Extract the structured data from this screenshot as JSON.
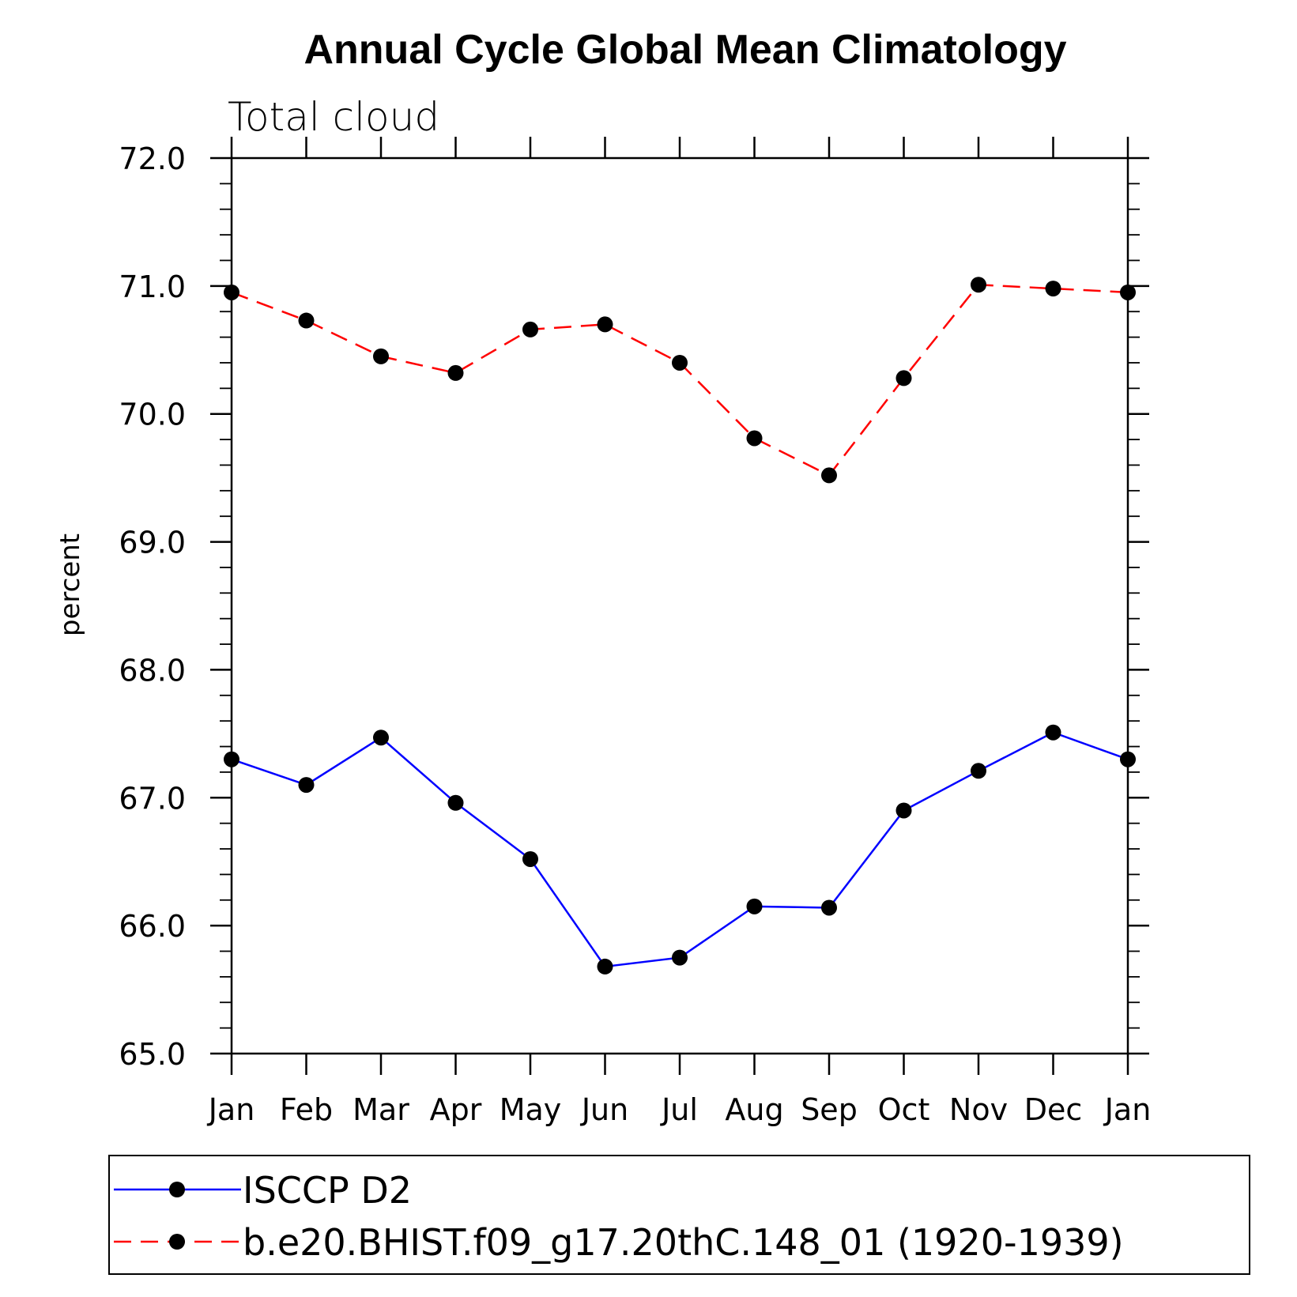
{
  "chart_data": {
    "type": "line",
    "title": "Annual Cycle Global Mean Climatology",
    "subtitle": "Total cloud",
    "xlabel": "",
    "ylabel": "percent",
    "categories": [
      "Jan",
      "Feb",
      "Mar",
      "Apr",
      "May",
      "Jun",
      "Jul",
      "Aug",
      "Sep",
      "Oct",
      "Nov",
      "Dec",
      "Jan"
    ],
    "ylim": [
      65.0,
      72.0
    ],
    "yticks": [
      "65.0",
      "66.0",
      "67.0",
      "68.0",
      "69.0",
      "70.0",
      "71.0",
      "72.0"
    ],
    "grid": false,
    "legend_position": "bottom",
    "series": [
      {
        "name": "ISCCP D2",
        "color": "#0000ff",
        "line_style": "solid",
        "marker": "filled-circle",
        "values": [
          67.3,
          67.1,
          67.47,
          66.96,
          66.52,
          65.68,
          65.75,
          66.15,
          66.14,
          66.9,
          67.21,
          67.51,
          67.3
        ]
      },
      {
        "name": "b.e20.BHIST.f09_g17.20thC.148_01 (1920-1939)",
        "color": "#ff0000",
        "line_style": "dashed",
        "marker": "filled-circle",
        "values": [
          70.95,
          70.73,
          70.45,
          70.32,
          70.66,
          70.7,
          70.4,
          69.81,
          69.52,
          70.28,
          71.01,
          70.98,
          70.95
        ]
      }
    ]
  }
}
